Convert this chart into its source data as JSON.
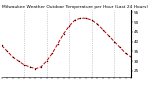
{
  "title": "Milwaukee Weather Outdoor Temperature per Hour (Last 24 Hours)",
  "hours": [
    0,
    1,
    2,
    3,
    4,
    5,
    6,
    7,
    8,
    9,
    10,
    11,
    12,
    13,
    14,
    15,
    16,
    17,
    18,
    19,
    20,
    21,
    22,
    23
  ],
  "temps": [
    38,
    35,
    32,
    30,
    28,
    27,
    26,
    27,
    30,
    34,
    39,
    44,
    48,
    51,
    52,
    52,
    51,
    49,
    46,
    43,
    40,
    37,
    34,
    32
  ],
  "line_color": "#cc0000",
  "marker_color": "#000000",
  "bg_color": "#ffffff",
  "ylim": [
    22,
    56
  ],
  "xlim": [
    0,
    23
  ],
  "vgrid_positions": [
    4,
    8,
    12,
    16,
    20
  ],
  "grid_color": "#aaaaaa",
  "title_fontsize": 3.2,
  "tick_fontsize": 3.0,
  "right_axis_yticks": [
    25,
    30,
    35,
    40,
    45,
    50,
    55
  ],
  "linewidth": 0.7,
  "markersize": 1.4
}
